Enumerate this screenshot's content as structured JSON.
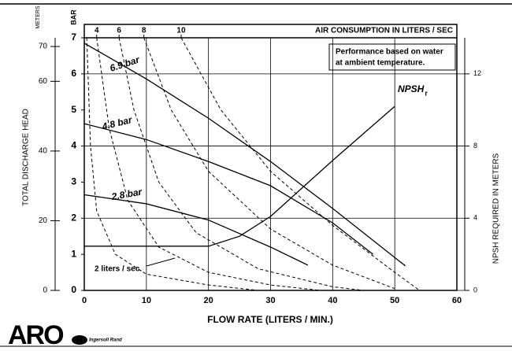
{
  "chart_data": {
    "type": "line",
    "x_label": "FLOW RATE (LITERS / MIN.)",
    "y_label": "TOTAL DISCHARGE HEAD",
    "y_unit": "BAR",
    "meters_unit": "METERS",
    "y2_label": "NPSH REQUIRED IN METERS",
    "x2_label": "AIR CONSUMPTION IN LITERS / SEC",
    "note": [
      "Performance based on water",
      "at ambient temperature."
    ],
    "air_label": "2 liters / sec.",
    "brand": "ARO",
    "brand2": "Ingersoll Rand",
    "xlim": [
      0,
      60
    ],
    "xticks": [
      0,
      10,
      20,
      30,
      40,
      50,
      60
    ],
    "ylim": [
      0,
      7
    ],
    "yticks": [
      0,
      1,
      2,
      3,
      4,
      5,
      6,
      7
    ],
    "y2lim": [
      0,
      14
    ],
    "y2ticks": [
      0,
      4,
      8,
      12
    ],
    "meters_lim": [
      0,
      72.5
    ],
    "meters_ticks": [
      0,
      20,
      40,
      60,
      70
    ],
    "x2ticks": [
      {
        "value": 2,
        "label": "4"
      },
      {
        "value": 5.6,
        "label": "6"
      },
      {
        "value": 9.6,
        "label": "8"
      },
      {
        "value": 15.6,
        "label": "10"
      }
    ],
    "grid": true,
    "series": [
      {
        "name": "6.9 bar",
        "color": "#000000",
        "x": [
          0,
          10,
          20,
          30,
          40,
          51.7
        ],
        "values": [
          6.85,
          5.86,
          4.77,
          3.57,
          2.27,
          0.68
        ]
      },
      {
        "name": "4.8 bar",
        "color": "#000000",
        "x": [
          0,
          10,
          20,
          30,
          40,
          46.5
        ],
        "values": [
          4.62,
          4.18,
          3.57,
          2.9,
          1.87,
          1.0
        ]
      },
      {
        "name": "2.8 bar",
        "color": "#000000",
        "x": [
          0,
          10,
          20,
          30,
          36
        ],
        "values": [
          2.65,
          2.4,
          1.95,
          1.2,
          0.7
        ]
      },
      {
        "name": "NPSH",
        "name_subscript": "r",
        "axis": "y2",
        "color": "#000000",
        "x": [
          0,
          20,
          25,
          30,
          40,
          50
        ],
        "values": [
          2.45,
          2.45,
          3.0,
          4.1,
          7.2,
          10.2
        ]
      }
    ],
    "air_curves": [
      {
        "x": [
          0.4,
          1,
          2,
          5,
          10,
          20,
          28
        ],
        "values": [
          7,
          4,
          2.2,
          1.0,
          0.45,
          0.15,
          0
        ]
      },
      {
        "x": [
          2,
          4,
          7,
          12,
          20,
          30,
          38
        ],
        "values": [
          7,
          4.5,
          2.5,
          1.2,
          0.5,
          0.15,
          0
        ]
      },
      {
        "x": [
          5.6,
          8,
          12,
          18,
          28,
          40,
          45
        ],
        "values": [
          7,
          5,
          3,
          1.6,
          0.6,
          0.1,
          0
        ]
      },
      {
        "x": [
          9.6,
          14,
          20,
          30,
          40,
          50
        ],
        "values": [
          7,
          5,
          3.3,
          1.7,
          0.7,
          0.05
        ]
      },
      {
        "x": [
          15.6,
          22,
          30,
          40,
          50,
          54
        ],
        "values": [
          7,
          5,
          3.3,
          1.8,
          0.5,
          0
        ]
      }
    ]
  }
}
